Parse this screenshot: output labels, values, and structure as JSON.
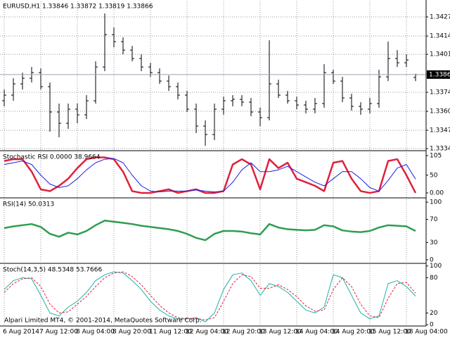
{
  "chart_data": [
    {
      "type": "ohlc",
      "title": "EURUSD,H1  1.33846 1.33872 1.33819 1.33866",
      "color": "#000000",
      "grid": true,
      "categories": [
        "6 Aug 2014",
        null,
        null,
        null,
        "7 Aug 12:00",
        null,
        null,
        null,
        "8 Aug 04:00",
        null,
        null,
        null,
        "8 Aug 20:00",
        null,
        null,
        null,
        "11 Aug 12:00",
        null,
        null,
        null,
        "12 Aug 04:00",
        null,
        null,
        null,
        "12 Aug 20:00",
        null,
        null,
        null,
        "13 Aug 12:00",
        null,
        null,
        null,
        "14 Aug 04:00",
        null,
        null,
        null,
        "14 Aug 20:00",
        null,
        null,
        null,
        "15 Aug 12:00",
        null,
        null,
        null,
        "18 Aug 04:00",
        null
      ],
      "open": [
        1.3368,
        1.3372,
        1.338,
        1.3384,
        1.3388,
        1.3378,
        1.336,
        1.3352,
        1.3362,
        1.3358,
        1.3368,
        1.3392,
        1.3415,
        1.341,
        1.3404,
        1.3398,
        1.3392,
        1.3388,
        1.3382,
        1.3378,
        1.3372,
        1.3362,
        1.335,
        1.3344,
        1.3362,
        1.3368,
        1.3369,
        1.3367,
        1.336,
        1.3356,
        1.338,
        1.3372,
        1.3368,
        1.3365,
        1.3362,
        1.3366,
        1.3388,
        1.3382,
        1.337,
        1.3364,
        1.3362,
        1.3366,
        1.3385,
        1.3398,
        1.3395,
        1.33846
      ],
      "high": [
        1.3376,
        1.3384,
        1.3388,
        1.3392,
        1.3391,
        1.3381,
        1.3366,
        1.3366,
        1.3366,
        1.3372,
        1.3396,
        1.343,
        1.342,
        1.3413,
        1.3407,
        1.3401,
        1.3395,
        1.3391,
        1.3386,
        1.3381,
        1.3375,
        1.3366,
        1.3354,
        1.3366,
        1.3371,
        1.3372,
        1.3372,
        1.337,
        1.3363,
        1.3411,
        1.3383,
        1.3375,
        1.3371,
        1.3368,
        1.337,
        1.3394,
        1.339,
        1.3385,
        1.3373,
        1.3367,
        1.337,
        1.339,
        1.341,
        1.3404,
        1.3401,
        1.33872
      ],
      "low": [
        1.3364,
        1.3368,
        1.3376,
        1.3381,
        1.3376,
        1.3346,
        1.3342,
        1.3348,
        1.3352,
        1.3355,
        1.3366,
        1.3389,
        1.3406,
        1.3401,
        1.3396,
        1.3389,
        1.3385,
        1.338,
        1.3375,
        1.3369,
        1.336,
        1.3345,
        1.3336,
        1.334,
        1.3358,
        1.3364,
        1.3364,
        1.3357,
        1.335,
        1.3354,
        1.337,
        1.3366,
        1.3362,
        1.3359,
        1.3359,
        1.3363,
        1.338,
        1.3367,
        1.3361,
        1.3358,
        1.3359,
        1.3363,
        1.3382,
        1.3392,
        1.3392,
        1.33819
      ],
      "close": [
        1.3372,
        1.338,
        1.3384,
        1.3388,
        1.3378,
        1.336,
        1.3352,
        1.3362,
        1.3358,
        1.3368,
        1.3392,
        1.3415,
        1.341,
        1.3404,
        1.3398,
        1.3392,
        1.3388,
        1.3382,
        1.3378,
        1.3372,
        1.3362,
        1.335,
        1.3344,
        1.3362,
        1.3368,
        1.3369,
        1.3367,
        1.336,
        1.3356,
        1.338,
        1.3372,
        1.3368,
        1.3365,
        1.3362,
        1.3366,
        1.3388,
        1.3382,
        1.337,
        1.3364,
        1.3362,
        1.3366,
        1.3385,
        1.3398,
        1.3395,
        1.3397,
        1.33866
      ],
      "current_price": 1.33866,
      "ylim": [
        1.3333,
        1.34386
      ],
      "yticks": [
        1.34276,
        {
          "value": 1.3414,
          "label": "1.34140"
        },
        {
          "value": 1.3401,
          "label": "1.34010"
        },
        {
          "value": 1.3374,
          "label": "1.33740"
        },
        1.33605,
        {
          "value": 1.3347,
          "label": "1.33470"
        },
        {
          "value": 1.3334,
          "label": "1.33340"
        }
      ]
    },
    {
      "type": "line",
      "title": "Stochastic RSI 0.0000 38.9664",
      "series": [
        {
          "color": "#e0203c",
          "width": 2.5,
          "values": [
            90,
            95,
            95,
            60,
            10,
            5,
            20,
            40,
            70,
            95,
            100,
            100,
            95,
            60,
            5,
            0,
            0,
            5,
            10,
            0,
            5,
            10,
            0,
            0,
            5,
            80,
            95,
            80,
            10,
            95,
            70,
            85,
            40,
            30,
            20,
            5,
            85,
            90,
            40,
            5,
            0,
            5,
            90,
            95,
            50,
            0
          ]
        },
        {
          "color": "#2020e0",
          "width": 1,
          "values": [
            80,
            85,
            90,
            80,
            50,
            25,
            15,
            20,
            40,
            65,
            85,
            95,
            97,
            85,
            50,
            20,
            5,
            3,
            5,
            5,
            5,
            8,
            5,
            3,
            5,
            30,
            65,
            85,
            60,
            60,
            65,
            75,
            60,
            45,
            30,
            20,
            40,
            60,
            60,
            40,
            15,
            5,
            35,
            70,
            80,
            38.9664
          ]
        }
      ],
      "ylim": [
        -12,
        115
      ],
      "yticks": [
        105,
        50,
        {
          "value": 0,
          "label": "0.00"
        }
      ]
    },
    {
      "type": "line",
      "title": "RSI(14) 50.0313",
      "series": [
        {
          "color": "#2e9e50",
          "width": 2.5,
          "values": [
            55,
            58,
            60,
            62,
            57,
            45,
            40,
            47,
            44,
            50,
            60,
            68,
            66,
            64,
            62,
            59,
            57,
            55,
            53,
            50,
            45,
            38,
            34,
            45,
            50,
            50,
            49,
            46,
            44,
            62,
            56,
            53,
            52,
            51,
            52,
            60,
            58,
            51,
            49,
            48,
            50,
            56,
            60,
            59,
            58,
            50.0313
          ]
        }
      ],
      "ylim": [
        -5,
        105
      ],
      "yticks": [
        100,
        70,
        30,
        0
      ]
    },
    {
      "type": "line",
      "title": "Stoch(14,3,5) 48.5348 53.7666",
      "series": [
        {
          "color": "#20b2aa",
          "width": 1,
          "values": [
            60,
            75,
            80,
            78,
            50,
            20,
            15,
            30,
            40,
            55,
            75,
            85,
            90,
            88,
            75,
            60,
            40,
            25,
            15,
            10,
            10,
            12,
            5,
            20,
            60,
            85,
            88,
            75,
            50,
            70,
            65,
            55,
            40,
            25,
            20,
            30,
            85,
            80,
            50,
            20,
            10,
            15,
            70,
            75,
            65,
            48.5348
          ]
        },
        {
          "color": "#e0203c",
          "width": 1,
          "dashed": true,
          "values": [
            55,
            70,
            78,
            80,
            65,
            35,
            20,
            22,
            35,
            48,
            65,
            80,
            88,
            90,
            82,
            68,
            50,
            33,
            20,
            12,
            10,
            11,
            8,
            12,
            40,
            70,
            85,
            82,
            62,
            62,
            68,
            60,
            48,
            32,
            23,
            25,
            60,
            80,
            65,
            35,
            15,
            12,
            45,
            70,
            72,
            53.7666
          ]
        }
      ],
      "ylim": [
        -1,
        102
      ],
      "yticks": [
        100,
        80,
        20,
        0
      ]
    }
  ],
  "footer": "Alpari Limited MT4, © 2001-2014, MetaQuotes Software Corp."
}
